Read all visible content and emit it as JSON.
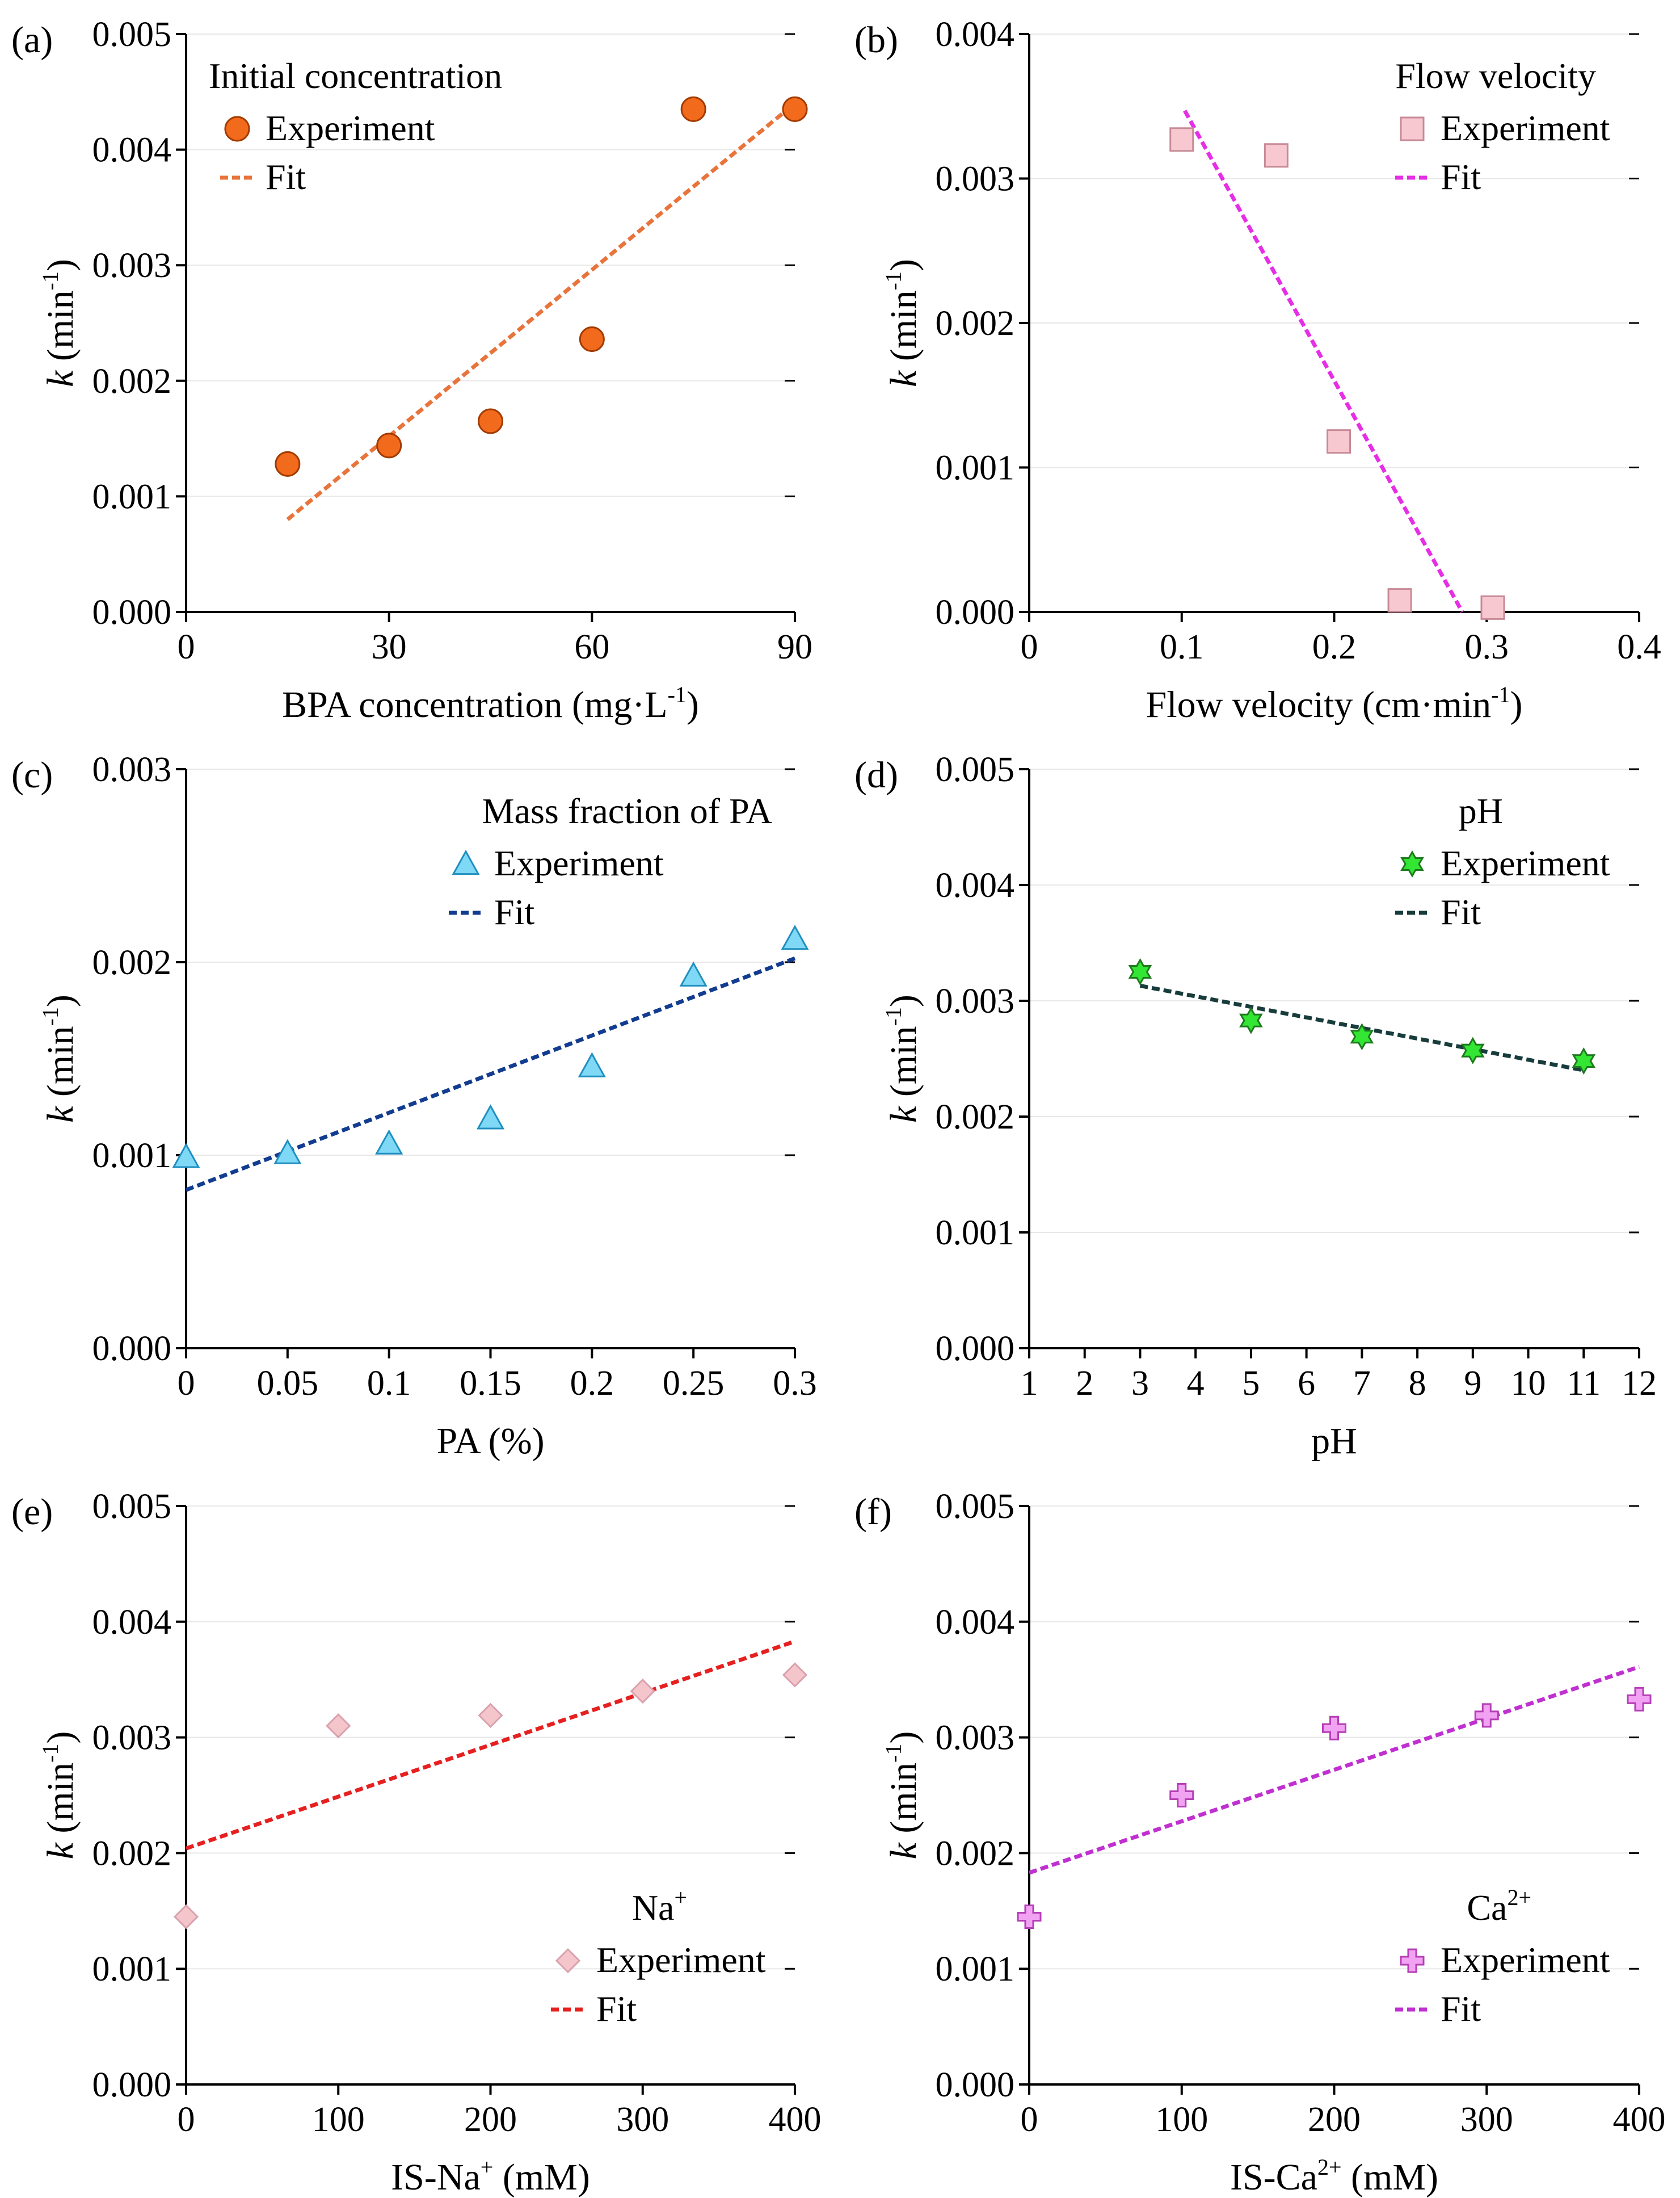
{
  "chart_data": [
    {
      "id": "a",
      "panel_label": "(a)",
      "type": "scatter",
      "legend_title": "Initial concentration",
      "legend_position": "top-left",
      "marker": "circle",
      "experiment_color": "#F26B1D",
      "experiment_edge": "#A33A00",
      "fit_color": "#E8743B",
      "xlabel": {
        "main": "BPA concentration (mg·L",
        "sup": "-1",
        "post": ")"
      },
      "ylabel": {
        "italic": "k",
        "main": " (min",
        "sup": "-1",
        "post": ")"
      },
      "xlim": [
        0,
        90
      ],
      "ylim": [
        0,
        0.005
      ],
      "xticks": [
        0,
        30,
        60,
        90
      ],
      "xtick_labels": [
        "0",
        "30",
        "60",
        "90"
      ],
      "yticks": [
        0,
        0.001,
        0.002,
        0.003,
        0.004,
        0.005
      ],
      "ytick_labels": [
        "0.000",
        "0.001",
        "0.002",
        "0.003",
        "0.004",
        "0.005"
      ],
      "series": [
        {
          "name": "Experiment",
          "x": [
            15,
            30,
            45,
            60,
            75,
            90
          ],
          "y": [
            0.00128,
            0.00144,
            0.00165,
            0.00236,
            0.00435,
            0.00435
          ]
        },
        {
          "name": "Fit",
          "x": [
            15,
            90
          ],
          "y": [
            0.0008,
            0.0044
          ]
        }
      ]
    },
    {
      "id": "b",
      "panel_label": "(b)",
      "type": "scatter",
      "legend_title": "Flow velocity",
      "legend_position": "top-right",
      "marker": "square",
      "experiment_color": "#F8C8D0",
      "experiment_edge": "#C78A97",
      "fit_color": "#E62EE6",
      "xlabel": {
        "main": "Flow velocity (cm·min",
        "sup": "-1",
        "post": ")"
      },
      "ylabel": {
        "italic": "k",
        "main": " (min",
        "sup": "-1",
        "post": ")"
      },
      "xlim": [
        0,
        0.4
      ],
      "ylim": [
        0,
        0.004
      ],
      "xticks": [
        0,
        0.1,
        0.2,
        0.3,
        0.4
      ],
      "xtick_labels": [
        "0",
        "0.1",
        "0.2",
        "0.3",
        "0.4"
      ],
      "yticks": [
        0,
        0.001,
        0.002,
        0.003,
        0.004
      ],
      "ytick_labels": [
        "0.000",
        "0.001",
        "0.002",
        "0.003",
        "0.004"
      ],
      "series": [
        {
          "name": "Experiment",
          "x": [
            0.1,
            0.162,
            0.203,
            0.243,
            0.304
          ],
          "y": [
            0.00327,
            0.00316,
            0.00118,
            8e-05,
            3e-05
          ]
        },
        {
          "name": "Fit",
          "x": [
            0.102,
            0.284
          ],
          "y": [
            0.00347,
            0.0
          ]
        }
      ]
    },
    {
      "id": "c",
      "panel_label": "(c)",
      "type": "scatter",
      "legend_title": "Mass fraction of PA",
      "legend_position": "top-right",
      "marker": "triangle",
      "experiment_color": "#7FD8F5",
      "experiment_edge": "#1F8FC0",
      "fit_color": "#123C8F",
      "xlabel": {
        "main": "PA (%)",
        "sup": "",
        "post": ""
      },
      "ylabel": {
        "italic": "k",
        "main": " (min",
        "sup": "-1",
        "post": ")"
      },
      "xlim": [
        0,
        0.3
      ],
      "ylim": [
        0,
        0.003
      ],
      "xticks": [
        0,
        0.05,
        0.1,
        0.15,
        0.2,
        0.25,
        0.3
      ],
      "xtick_labels": [
        "0",
        "0.05",
        "0.1",
        "0.15",
        "0.2",
        "0.25",
        "0.3"
      ],
      "yticks": [
        0,
        0.001,
        0.002,
        0.003
      ],
      "ytick_labels": [
        "0.000",
        "0.001",
        "0.002",
        "0.003"
      ],
      "series": [
        {
          "name": "Experiment",
          "x": [
            0,
            0.05,
            0.1,
            0.15,
            0.2,
            0.25,
            0.3
          ],
          "y": [
            0.00099,
            0.00101,
            0.00106,
            0.00119,
            0.00146,
            0.00193,
            0.00212
          ]
        },
        {
          "name": "Fit",
          "x": [
            0,
            0.3
          ],
          "y": [
            0.00082,
            0.00202
          ]
        }
      ]
    },
    {
      "id": "d",
      "panel_label": "(d)",
      "type": "scatter",
      "legend_title": "pH",
      "legend_position": "top-right",
      "marker": "star",
      "experiment_color": "#33E633",
      "experiment_edge": "#1E7A1E",
      "fit_color": "#183C3C",
      "xlabel": {
        "main": "pH",
        "sup": "",
        "post": ""
      },
      "ylabel": {
        "italic": "k",
        "main": " (min",
        "sup": "-1",
        "post": ")"
      },
      "xlim": [
        1,
        12
      ],
      "ylim": [
        0,
        0.005
      ],
      "xticks": [
        1,
        2,
        3,
        4,
        5,
        6,
        7,
        8,
        9,
        10,
        11,
        12
      ],
      "xtick_labels": [
        "1",
        "2",
        "3",
        "4",
        "5",
        "6",
        "7",
        "8",
        "9",
        "10",
        "11",
        "12"
      ],
      "yticks": [
        0,
        0.001,
        0.002,
        0.003,
        0.004,
        0.005
      ],
      "ytick_labels": [
        "0.000",
        "0.001",
        "0.002",
        "0.003",
        "0.004",
        "0.005"
      ],
      "series": [
        {
          "name": "Experiment",
          "x": [
            3,
            5,
            7,
            9,
            11
          ],
          "y": [
            0.00325,
            0.00283,
            0.00269,
            0.00257,
            0.00248
          ]
        },
        {
          "name": "Fit",
          "x": [
            3,
            11
          ],
          "y": [
            0.00313,
            0.0024
          ]
        }
      ]
    },
    {
      "id": "e",
      "panel_label": "(e)",
      "type": "scatter",
      "legend_title": "Na",
      "legend_title_sup": "+",
      "legend_position": "bottom-right",
      "marker": "diamond",
      "experiment_color": "#F5C5CC",
      "experiment_edge": "#D9A2AD",
      "fit_color": "#E62020",
      "xlabel": {
        "main": "IS-Na",
        "sup": "+",
        "post": " (mM)"
      },
      "ylabel": {
        "italic": "k",
        "main": " (min",
        "sup": "-1",
        "post": ")"
      },
      "xlim": [
        0,
        400
      ],
      "ylim": [
        0,
        0.005
      ],
      "xticks": [
        0,
        100,
        200,
        300,
        400
      ],
      "xtick_labels": [
        "0",
        "100",
        "200",
        "300",
        "400"
      ],
      "yticks": [
        0,
        0.001,
        0.002,
        0.003,
        0.004,
        0.005
      ],
      "ytick_labels": [
        "0.000",
        "0.001",
        "0.002",
        "0.003",
        "0.004",
        "0.005"
      ],
      "series": [
        {
          "name": "Experiment",
          "x": [
            0,
            100,
            200,
            300,
            400
          ],
          "y": [
            0.00145,
            0.0031,
            0.00319,
            0.0034,
            0.00354
          ]
        },
        {
          "name": "Fit",
          "x": [
            0,
            400
          ],
          "y": [
            0.00204,
            0.00383
          ]
        }
      ]
    },
    {
      "id": "f",
      "panel_label": "(f)",
      "type": "scatter",
      "legend_title": "Ca",
      "legend_title_sup": "2+",
      "legend_position": "bottom-right",
      "marker": "cross",
      "experiment_color": "#F2A2F2",
      "experiment_edge": "#B53FB5",
      "fit_color": "#C030D0",
      "xlabel": {
        "main": "IS-Ca",
        "sup": "2+",
        "post": " (mM)"
      },
      "ylabel": {
        "italic": "k",
        "main": " (min",
        "sup": "-1",
        "post": ")"
      },
      "xlim": [
        0,
        400
      ],
      "ylim": [
        0,
        0.005
      ],
      "xticks": [
        0,
        100,
        200,
        300,
        400
      ],
      "xtick_labels": [
        "0",
        "100",
        "200",
        "300",
        "400"
      ],
      "yticks": [
        0,
        0.001,
        0.002,
        0.003,
        0.004,
        0.005
      ],
      "ytick_labels": [
        "0.000",
        "0.001",
        "0.002",
        "0.003",
        "0.004",
        "0.005"
      ],
      "series": [
        {
          "name": "Experiment",
          "x": [
            0,
            100,
            200,
            300,
            400
          ],
          "y": [
            0.00145,
            0.0025,
            0.00308,
            0.00319,
            0.00333
          ]
        },
        {
          "name": "Fit",
          "x": [
            0,
            400
          ],
          "y": [
            0.00183,
            0.00361
          ]
        }
      ]
    }
  ]
}
